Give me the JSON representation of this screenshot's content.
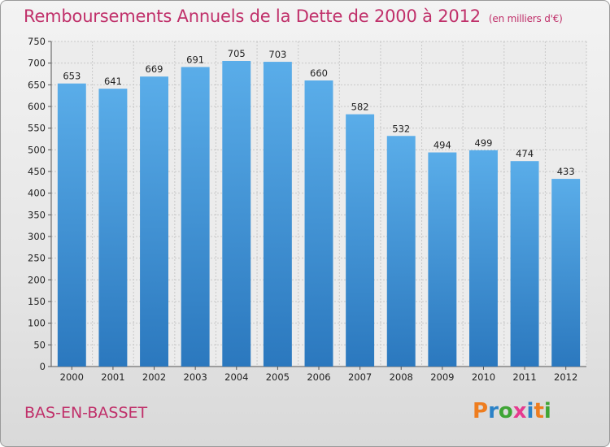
{
  "title": "Remboursements Annuels de la Dette de 2000 à 2012",
  "subtitle": "(en milliers d'€)",
  "place": "BAS-EN-BASSET",
  "logo": {
    "letters": [
      "P",
      "r",
      "o",
      "x",
      "i",
      "t",
      "i"
    ],
    "colors": [
      "#ee7d1f",
      "#2b82c7",
      "#3fa535",
      "#e63a8f",
      "#2b82c7",
      "#ee7d1f",
      "#3fa535"
    ]
  },
  "chart_data": {
    "type": "bar",
    "categories": [
      "2000",
      "2001",
      "2002",
      "2003",
      "2004",
      "2005",
      "2006",
      "2007",
      "2008",
      "2009",
      "2010",
      "2011",
      "2012"
    ],
    "values": [
      653,
      641,
      669,
      691,
      705,
      703,
      660,
      582,
      532,
      494,
      499,
      474,
      433
    ],
    "yticks": [
      0,
      50,
      100,
      150,
      200,
      250,
      300,
      350,
      400,
      450,
      500,
      550,
      600,
      650,
      700,
      750
    ],
    "ylim": [
      0,
      750
    ],
    "grid": true,
    "bar_color": "#4a9de0"
  }
}
